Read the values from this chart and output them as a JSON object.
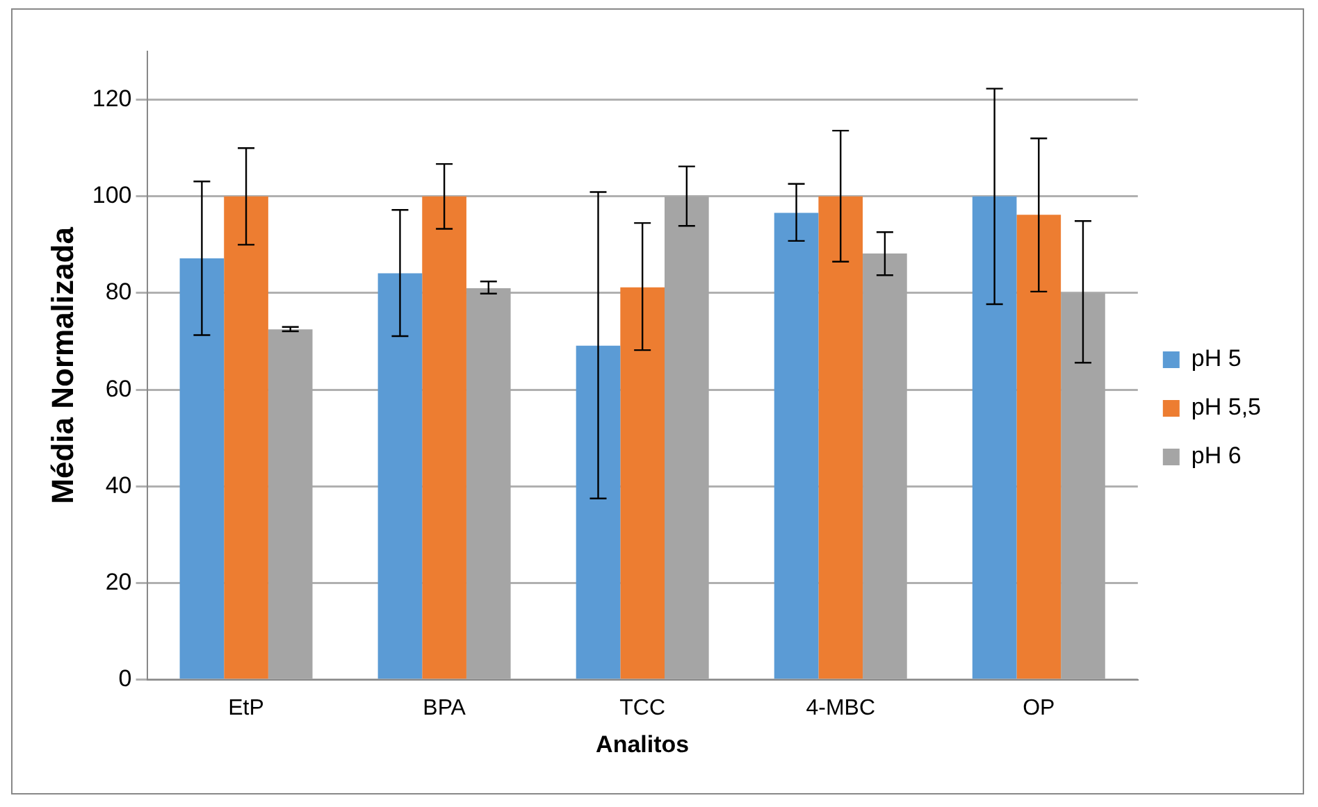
{
  "chart_data": {
    "type": "bar",
    "xlabel": "Analitos",
    "ylabel": "Média Normalizada",
    "categories": [
      "EtP",
      "BPA",
      "TCC",
      "4-MBC",
      "OP"
    ],
    "series": [
      {
        "name": "pH 5",
        "color": "#5b9bd5",
        "values": [
          87.2,
          84.1,
          69.1,
          96.6,
          100
        ],
        "errors": [
          [
            71.3,
            103.1
          ],
          [
            71.1,
            97.2
          ],
          [
            37.5,
            100.9
          ],
          [
            90.8,
            102.6
          ],
          [
            77.7,
            122.3
          ]
        ]
      },
      {
        "name": "pH 5,5",
        "color": "#ed7d31",
        "values": [
          100,
          100,
          81.2,
          100,
          96.2
        ],
        "errors": [
          [
            90,
            110
          ],
          [
            93.3,
            106.7
          ],
          [
            68.2,
            94.5
          ],
          [
            86.5,
            113.6
          ],
          [
            80.3,
            112
          ]
        ]
      },
      {
        "name": "pH 6",
        "color": "#a5a5a5",
        "values": [
          72.5,
          81,
          100,
          88.2,
          80
        ],
        "errors": [
          [
            72.1,
            73
          ],
          [
            79.9,
            82.4
          ],
          [
            93.9,
            106.2
          ],
          [
            83.7,
            92.6
          ],
          [
            65.6,
            94.9
          ]
        ]
      }
    ],
    "ylim": [
      0,
      130
    ],
    "yticks": [
      0,
      20,
      40,
      60,
      80,
      100,
      120
    ],
    "grid": "y",
    "legend": "right"
  }
}
